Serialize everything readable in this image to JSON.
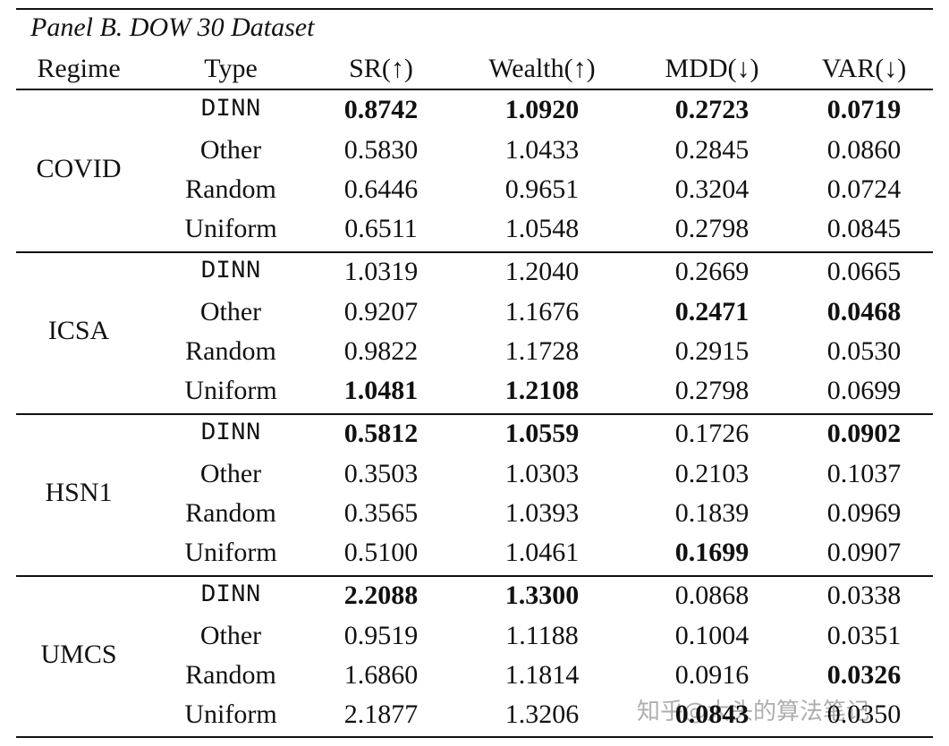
{
  "title": "Panel B. DOW 30 Dataset",
  "header": [
    "Regime",
    "Type",
    "SR(↑)",
    "Wealth(↑)",
    "MDD(↓)",
    "VAR(↓)"
  ],
  "groups": [
    {
      "regime": "COVID",
      "rows": [
        {
          "type": "DINN",
          "values": [
            "0.8742",
            "1.0920",
            "0.2723",
            "0.0719"
          ],
          "bold": [
            true,
            true,
            true,
            true
          ]
        },
        {
          "type": "Other",
          "values": [
            "0.5830",
            "1.0433",
            "0.2845",
            "0.0860"
          ],
          "bold": [
            false,
            false,
            false,
            false
          ]
        },
        {
          "type": "Random",
          "values": [
            "0.6446",
            "0.9651",
            "0.3204",
            "0.0724"
          ],
          "bold": [
            false,
            false,
            false,
            false
          ]
        },
        {
          "type": "Uniform",
          "values": [
            "0.6511",
            "1.0548",
            "0.2798",
            "0.0845"
          ],
          "bold": [
            false,
            false,
            false,
            false
          ]
        }
      ]
    },
    {
      "regime": "ICSA",
      "rows": [
        {
          "type": "DINN",
          "values": [
            "1.0319",
            "1.2040",
            "0.2669",
            "0.0665"
          ],
          "bold": [
            false,
            false,
            false,
            false
          ]
        },
        {
          "type": "Other",
          "values": [
            "0.9207",
            "1.1676",
            "0.2471",
            "0.0468"
          ],
          "bold": [
            false,
            false,
            true,
            true
          ]
        },
        {
          "type": "Random",
          "values": [
            "0.9822",
            "1.1728",
            "0.2915",
            "0.0530"
          ],
          "bold": [
            false,
            false,
            false,
            false
          ]
        },
        {
          "type": "Uniform",
          "values": [
            "1.0481",
            "1.2108",
            "0.2798",
            "0.0699"
          ],
          "bold": [
            true,
            true,
            false,
            false
          ]
        }
      ]
    },
    {
      "regime": "HSN1",
      "rows": [
        {
          "type": "DINN",
          "values": [
            "0.5812",
            "1.0559",
            "0.1726",
            "0.0902"
          ],
          "bold": [
            true,
            true,
            false,
            true
          ]
        },
        {
          "type": "Other",
          "values": [
            "0.3503",
            "1.0303",
            "0.2103",
            "0.1037"
          ],
          "bold": [
            false,
            false,
            false,
            false
          ]
        },
        {
          "type": "Random",
          "values": [
            "0.3565",
            "1.0393",
            "0.1839",
            "0.0969"
          ],
          "bold": [
            false,
            false,
            false,
            false
          ]
        },
        {
          "type": "Uniform",
          "values": [
            "0.5100",
            "1.0461",
            "0.1699",
            "0.0907"
          ],
          "bold": [
            false,
            false,
            true,
            false
          ]
        }
      ]
    },
    {
      "regime": "UMCS",
      "rows": [
        {
          "type": "DINN",
          "values": [
            "2.2088",
            "1.3300",
            "0.0868",
            "0.0338"
          ],
          "bold": [
            true,
            true,
            false,
            false
          ]
        },
        {
          "type": "Other",
          "values": [
            "0.9519",
            "1.1188",
            "0.1004",
            "0.0351"
          ],
          "bold": [
            false,
            false,
            false,
            false
          ]
        },
        {
          "type": "Random",
          "values": [
            "1.6860",
            "1.1814",
            "0.0916",
            "0.0326"
          ],
          "bold": [
            false,
            false,
            false,
            true
          ]
        },
        {
          "type": "Uniform",
          "values": [
            "2.1877",
            "1.3206",
            "0.0843",
            "0.0350"
          ],
          "bold": [
            false,
            false,
            true,
            false
          ]
        }
      ]
    }
  ],
  "watermark": "知乎@大头的算法笔记"
}
